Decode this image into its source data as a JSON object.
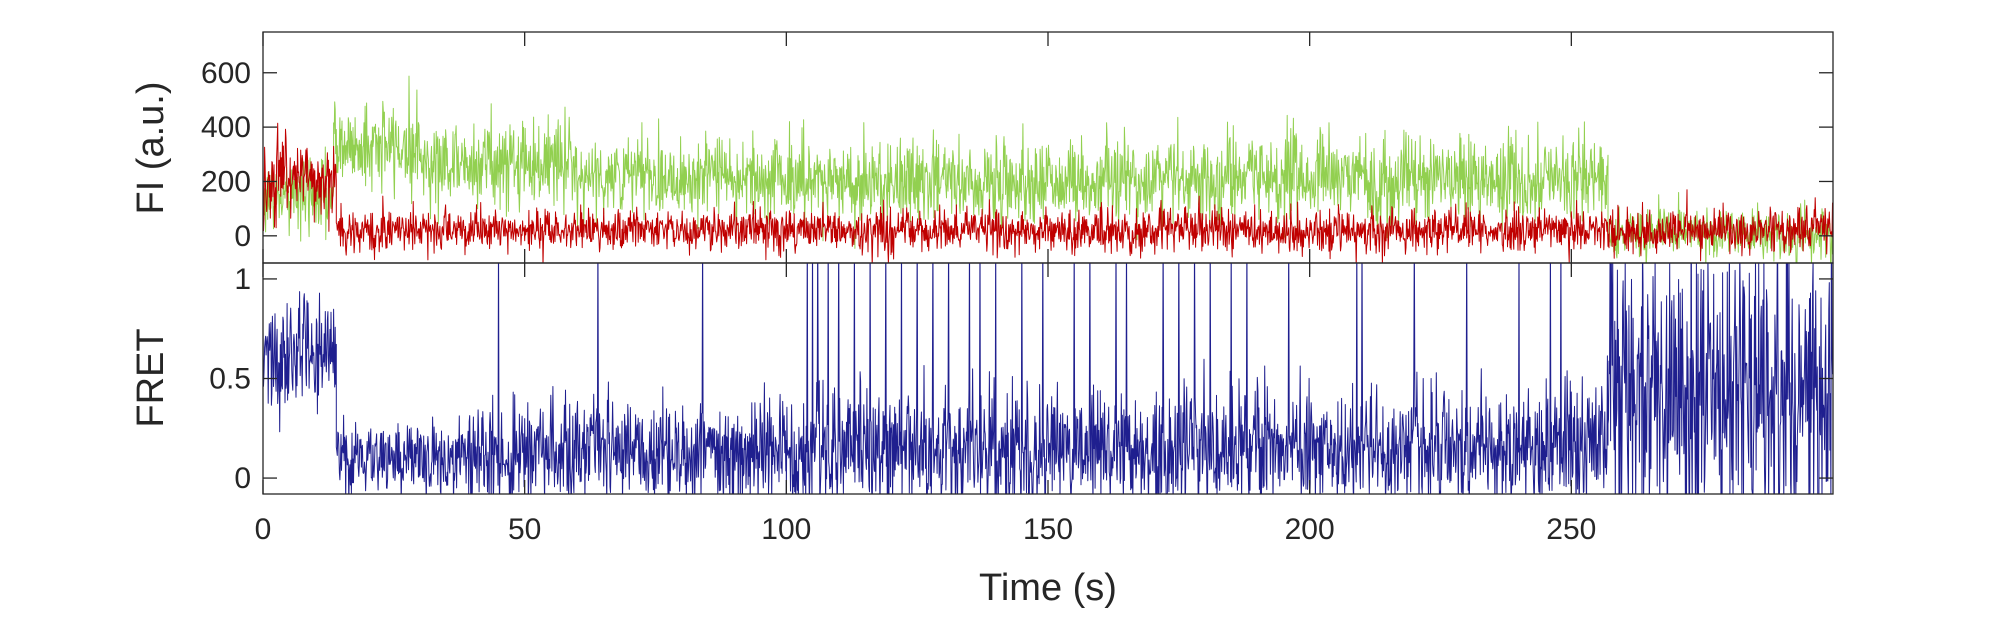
{
  "chart_data": [
    {
      "type": "line",
      "panel": "top",
      "title": "",
      "xlabel": "",
      "ylabel": "FI (a.u.)",
      "xlim": [
        0,
        300
      ],
      "ylim": [
        -100,
        750
      ],
      "yticks": [
        0,
        200,
        400,
        600
      ],
      "ytick_labels": [
        "0",
        "200",
        "400",
        "600"
      ],
      "grid": false,
      "series": [
        {
          "color": "#92d050",
          "segments": [
            {
              "x": [
                0,
                13.5
              ],
              "mean": 150,
              "sd": 70
            },
            {
              "x": [
                13.5,
                30
              ],
              "mean": 330,
              "sd": 80
            },
            {
              "x": [
                30,
                60
              ],
              "mean": 270,
              "sd": 80
            },
            {
              "x": [
                60,
                100
              ],
              "mean": 220,
              "sd": 75
            },
            {
              "x": [
                100,
                160
              ],
              "mean": 200,
              "sd": 75
            },
            {
              "x": [
                160,
                257
              ],
              "mean": 210,
              "sd": 80
            },
            {
              "x": [
                257,
                300
              ],
              "mean": 10,
              "sd": 45
            }
          ]
        },
        {
          "color": "#c00000",
          "segments": [
            {
              "x": [
                0,
                14
              ],
              "mean": 200,
              "sd": 70
            },
            {
              "x": [
                14,
                300
              ],
              "mean": 20,
              "sd": 40
            }
          ]
        }
      ]
    },
    {
      "type": "line",
      "panel": "bottom",
      "title": "",
      "xlabel": "Time (s)",
      "ylabel": "FRET",
      "xlim": [
        0,
        300
      ],
      "ylim": [
        -0.08,
        1.08
      ],
      "xticks": [
        0,
        50,
        100,
        150,
        200,
        250
      ],
      "xtick_labels": [
        "0",
        "50",
        "100",
        "150",
        "200",
        "250"
      ],
      "yticks": [
        0,
        0.5,
        1
      ],
      "ytick_labels": [
        "0",
        "0.5",
        "1"
      ],
      "grid": false,
      "series": [
        {
          "color": "#1f1f8f",
          "segments": [
            {
              "x": [
                0,
                14
              ],
              "mean": 0.62,
              "sd": 0.14
            },
            {
              "x": [
                14,
                40
              ],
              "mean": 0.1,
              "sd": 0.09
            },
            {
              "x": [
                40,
                100
              ],
              "mean": 0.14,
              "sd": 0.13
            },
            {
              "x": [
                100,
                160
              ],
              "mean": 0.15,
              "sd": 0.15
            },
            {
              "x": [
                160,
                257
              ],
              "mean": 0.15,
              "sd": 0.15
            },
            {
              "x": [
                257,
                300
              ],
              "mean": 0.45,
              "sd": 0.38
            }
          ],
          "spikes_to_top_at": [
            45,
            64,
            84,
            104,
            105,
            106,
            108,
            110,
            113,
            116,
            119,
            122,
            125,
            128,
            131,
            135,
            137,
            140,
            145,
            149,
            155,
            158,
            163,
            165,
            172,
            175,
            178,
            181,
            185,
            188,
            196,
            209,
            210,
            220,
            230,
            240,
            246,
            248
          ]
        }
      ]
    }
  ]
}
